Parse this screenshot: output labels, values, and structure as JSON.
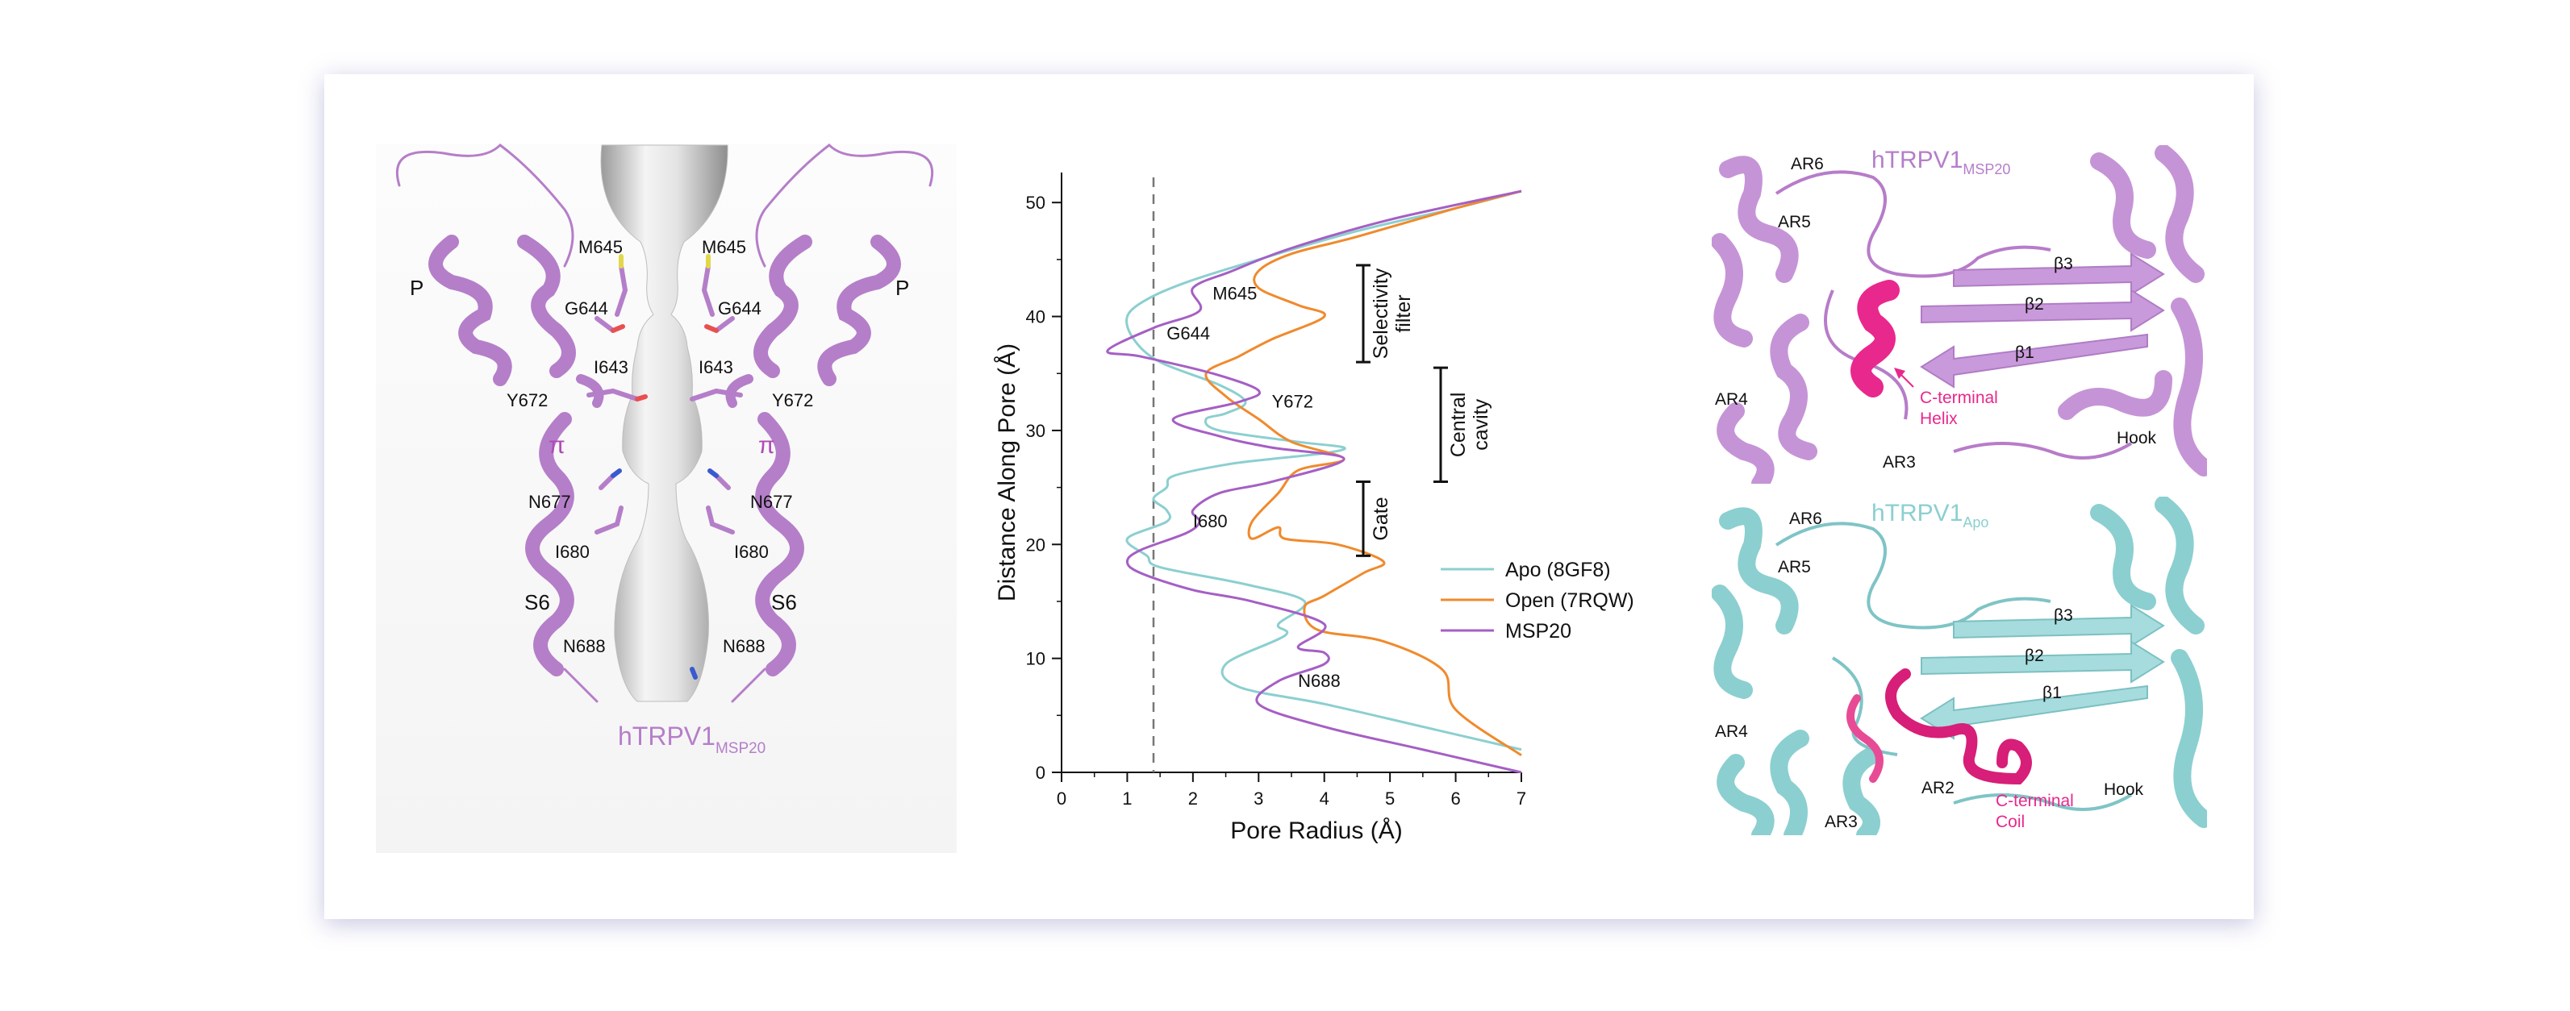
{
  "panel_a": {
    "title_main": "hTRPV1",
    "title_sub": "MSP20",
    "labels": {
      "m645": "M645",
      "g644": "G644",
      "i643": "I643",
      "y672": "Y672",
      "n677": "N677",
      "i680": "I680",
      "n688": "N688",
      "p": "P",
      "s6": "S6",
      "pi": "π"
    }
  },
  "chart_data": {
    "type": "line",
    "xlabel": "Pore Radius (Å)",
    "ylabel": "Distance Along Pore (Å)",
    "xlim": [
      0,
      7
    ],
    "ylim": [
      0,
      50
    ],
    "xticks": [
      0,
      1,
      2,
      3,
      4,
      5,
      6,
      7
    ],
    "yticks": [
      0,
      10,
      20,
      30,
      40,
      50
    ],
    "reference_line_x": 1.4,
    "legend_position": "right",
    "series": [
      {
        "name": "Apo (8GF8)",
        "color": "#8ccfd0",
        "points": [
          [
            7,
            2
          ],
          [
            5.5,
            4
          ],
          [
            4,
            6
          ],
          [
            2.7,
            7.5
          ],
          [
            2.5,
            9.5
          ],
          [
            3.4,
            12
          ],
          [
            3.3,
            13
          ],
          [
            3.7,
            15
          ],
          [
            2.8,
            16.5
          ],
          [
            1.5,
            18
          ],
          [
            1.3,
            19
          ],
          [
            1.0,
            20.5
          ],
          [
            1.6,
            22
          ],
          [
            1.6,
            23
          ],
          [
            1.4,
            24
          ],
          [
            1.6,
            25
          ],
          [
            1.7,
            26
          ],
          [
            2.5,
            27
          ],
          [
            3.2,
            27.5
          ],
          [
            4.0,
            28
          ],
          [
            4.3,
            28.5
          ],
          [
            3.6,
            29
          ],
          [
            2.4,
            30
          ],
          [
            2.2,
            31
          ],
          [
            2.5,
            31.5
          ],
          [
            2.8,
            32.5
          ],
          [
            2.4,
            34
          ],
          [
            1.5,
            36
          ],
          [
            1.1,
            38
          ],
          [
            1.0,
            40
          ],
          [
            1.3,
            41.5
          ],
          [
            1.9,
            43
          ],
          [
            3.0,
            45
          ],
          [
            4.5,
            47.5
          ],
          [
            6.0,
            49.5
          ],
          [
            7,
            51
          ]
        ]
      },
      {
        "name": "Open (7RQW)",
        "color": "#f08a2c",
        "points": [
          [
            7,
            1.5
          ],
          [
            6.0,
            5.5
          ],
          [
            5.8,
            9
          ],
          [
            4.9,
            11.5
          ],
          [
            3.9,
            12.5
          ],
          [
            3.7,
            14.5
          ],
          [
            4.0,
            15.5
          ],
          [
            4.6,
            17.5
          ],
          [
            4.9,
            18.5
          ],
          [
            4.2,
            20
          ],
          [
            3.4,
            20.5
          ],
          [
            3.3,
            21.5
          ],
          [
            2.9,
            20.5
          ],
          [
            2.9,
            22
          ],
          [
            3.3,
            24.5
          ],
          [
            3.6,
            26.5
          ],
          [
            4.3,
            27.5
          ],
          [
            3.5,
            29
          ],
          [
            3.0,
            31
          ],
          [
            2.5,
            33
          ],
          [
            2.2,
            35
          ],
          [
            2.7,
            36.5
          ],
          [
            3.2,
            38
          ],
          [
            4.0,
            40
          ],
          [
            3.6,
            41
          ],
          [
            3.0,
            42.5
          ],
          [
            3.0,
            44
          ],
          [
            3.5,
            45.5
          ],
          [
            4.5,
            47
          ],
          [
            6.0,
            49.5
          ],
          [
            7,
            51
          ]
        ]
      },
      {
        "name": "MSP20",
        "color": "#a55fc4",
        "points": [
          [
            7,
            0
          ],
          [
            5.5,
            2
          ],
          [
            4,
            4
          ],
          [
            3,
            6
          ],
          [
            3.3,
            8
          ],
          [
            4.0,
            9.5
          ],
          [
            4.0,
            10.5
          ],
          [
            3.6,
            11
          ],
          [
            4.0,
            13
          ],
          [
            2.9,
            15
          ],
          [
            2.0,
            16
          ],
          [
            1.2,
            17.5
          ],
          [
            1.0,
            18.5
          ],
          [
            1.2,
            19.5
          ],
          [
            1.9,
            21
          ],
          [
            2.1,
            22
          ],
          [
            2.0,
            23
          ],
          [
            2.4,
            24.5
          ],
          [
            3.2,
            25.5
          ],
          [
            4.3,
            27.5
          ],
          [
            3.2,
            28.5
          ],
          [
            2.4,
            29.5
          ],
          [
            1.7,
            31
          ],
          [
            2.7,
            32.5
          ],
          [
            3.0,
            33.5
          ],
          [
            2.3,
            35
          ],
          [
            1.2,
            36.5
          ],
          [
            0.7,
            37
          ],
          [
            1.4,
            39
          ],
          [
            2.1,
            40.5
          ],
          [
            2.0,
            42.5
          ],
          [
            2.6,
            44
          ],
          [
            3.5,
            46
          ],
          [
            5,
            48.5
          ],
          [
            7,
            51
          ]
        ]
      }
    ],
    "annotations": [
      {
        "text": "M645",
        "x": 2.3,
        "y": 41.5
      },
      {
        "text": "G644",
        "x": 1.6,
        "y": 38
      },
      {
        "text": "Y672",
        "x": 3.2,
        "y": 32
      },
      {
        "text": "I680",
        "x": 2.0,
        "y": 21.5
      },
      {
        "text": "N688",
        "x": 3.6,
        "y": 7.5
      }
    ],
    "brackets": [
      {
        "label_lines": [
          "Selectivity",
          "filter"
        ],
        "y_range": [
          36,
          44.5
        ]
      },
      {
        "label_lines": [
          "Central",
          "cavity"
        ],
        "y_range": [
          25.5,
          35.5
        ]
      },
      {
        "label_lines": [
          "Gate"
        ],
        "y_range": [
          19,
          25.5
        ]
      }
    ]
  },
  "panel_c_top": {
    "title_main": "hTRPV1",
    "title_sub": "MSP20",
    "labels": {
      "ar6": "AR6",
      "ar5": "AR5",
      "ar4": "AR4",
      "ar3": "AR3",
      "b1": "β1",
      "b2": "β2",
      "b3": "β3",
      "hook": "Hook",
      "helix_l1": "C-terminal",
      "helix_l2": "Helix"
    }
  },
  "panel_c_bottom": {
    "title_main": "hTRPV1",
    "title_sub": "Apo",
    "labels": {
      "ar6": "AR6",
      "ar5": "AR5",
      "ar4": "AR4",
      "ar3": "AR3",
      "ar2": "AR2",
      "b1": "β1",
      "b2": "β2",
      "b3": "β3",
      "hook": "Hook",
      "coil_l1": "C-terminal",
      "coil_l2": "Coil"
    }
  },
  "colors": {
    "purple": "#b57ec9",
    "teal": "#8ccfd0",
    "magenta": "#e8288c",
    "orange": "#f08a2c",
    "msp20": "#a55fc4"
  }
}
